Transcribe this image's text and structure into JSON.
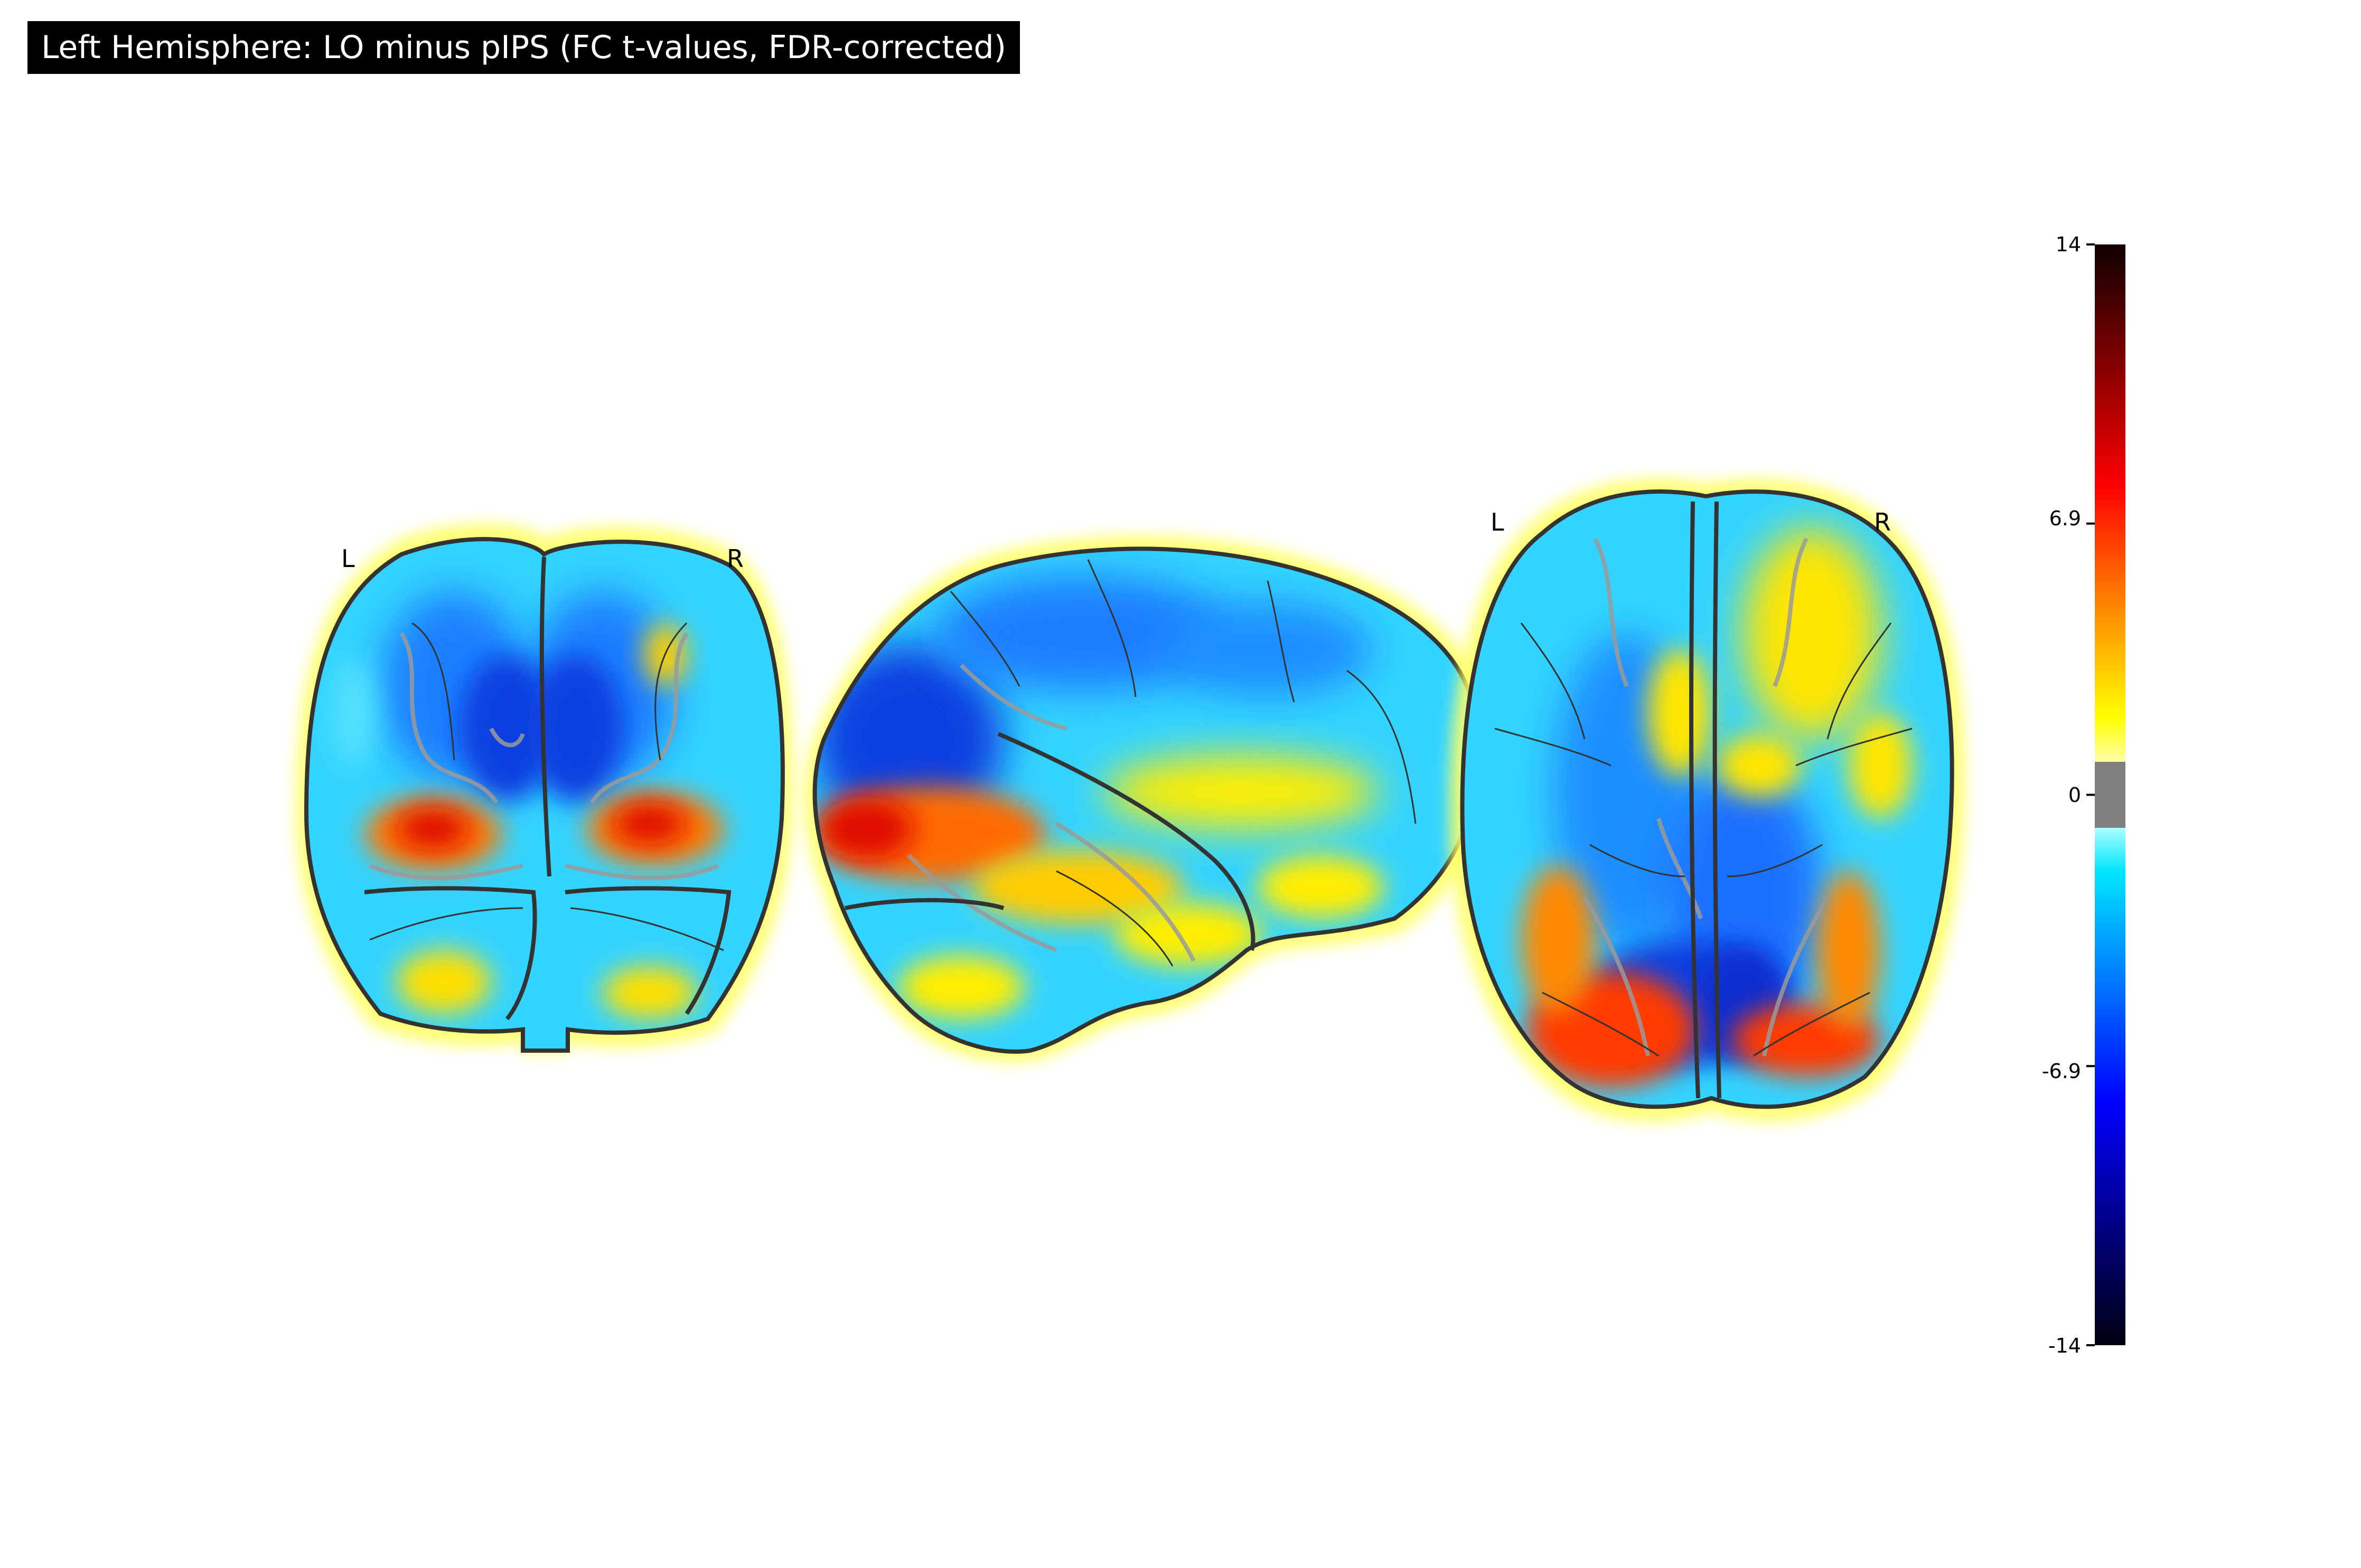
{
  "figure": {
    "title": "Left Hemisphere: LO minus pIPS (FC t-values, FDR-corrected)",
    "views": [
      {
        "name": "coronal",
        "left_label": "L",
        "right_label": "R"
      },
      {
        "name": "sagittal"
      },
      {
        "name": "axial",
        "left_label": "L",
        "right_label": "R"
      }
    ],
    "colorbar": {
      "colormap": "cold_hot",
      "min": -14,
      "max": 14,
      "threshold_band": [
        -1.2,
        1.2
      ],
      "threshold_color": "#808080",
      "ticks": [
        "14",
        "6.9",
        "0",
        "-6.9",
        "-14"
      ]
    }
  }
}
